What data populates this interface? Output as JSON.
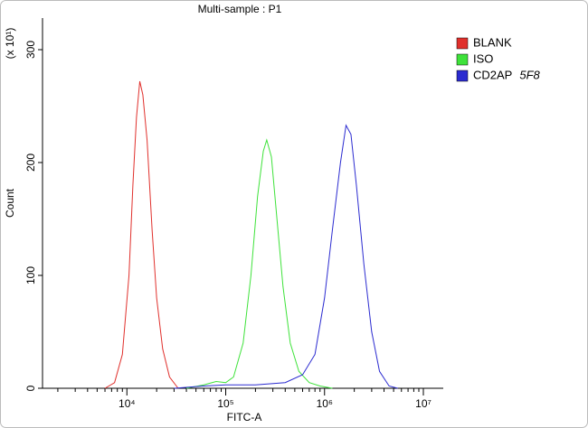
{
  "chart_data": {
    "type": "line",
    "title": "Multi-sample : P1",
    "xlabel": "FITC-A",
    "ylabel": "Count",
    "ylabel_scale": "(x 10¹)",
    "x_log": true,
    "xlim": [
      1400,
      15900000
    ],
    "ylim": [
      0,
      328
    ],
    "xticks": [
      {
        "value": 10000,
        "label": "10⁴"
      },
      {
        "value": 100000,
        "label": "10⁵"
      },
      {
        "value": 1000000,
        "label": "10⁶"
      },
      {
        "value": 10000000,
        "label": "10⁷"
      }
    ],
    "yticks": [
      0,
      100,
      200,
      300
    ],
    "legend_position": "upper right",
    "legend_note": "5F8",
    "series": [
      {
        "name": "BLANK",
        "color": "#e0302c",
        "x": [
          6000,
          7500,
          9000,
          10500,
          11500,
          12500,
          13500,
          14500,
          16000,
          18000,
          20000,
          23000,
          27000,
          33000
        ],
        "values": [
          0,
          5,
          30,
          100,
          180,
          240,
          272,
          260,
          220,
          140,
          80,
          35,
          10,
          0
        ]
      },
      {
        "name": "ISO",
        "color": "#3ee23a",
        "x": [
          40000,
          60000,
          80000,
          100000,
          120000,
          150000,
          180000,
          210000,
          240000,
          260000,
          290000,
          330000,
          380000,
          450000,
          550000,
          700000,
          900000,
          1200000
        ],
        "values": [
          0,
          3,
          6,
          5,
          10,
          40,
          100,
          170,
          210,
          220,
          205,
          150,
          90,
          40,
          15,
          5,
          2,
          0
        ]
      },
      {
        "name": "CD2AP",
        "color": "#2b2bd0",
        "x": [
          30000,
          60000,
          100000,
          200000,
          400000,
          600000,
          800000,
          1000000,
          1200000,
          1450000,
          1650000,
          1850000,
          2100000,
          2500000,
          3000000,
          3600000,
          4500000,
          5500000
        ],
        "values": [
          0,
          2,
          3,
          3,
          5,
          12,
          30,
          80,
          140,
          200,
          233,
          225,
          180,
          110,
          50,
          15,
          2,
          0
        ]
      }
    ]
  }
}
